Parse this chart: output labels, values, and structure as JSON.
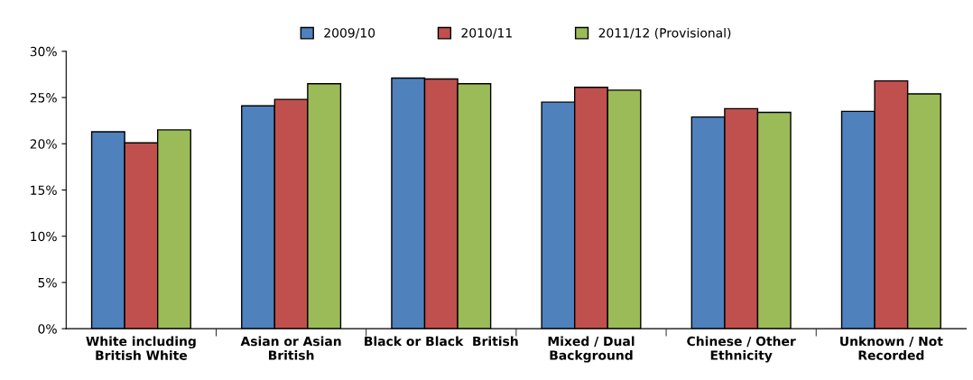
{
  "chart_data": {
    "type": "bar",
    "categories": [
      "White including\nBritish White",
      "Asian or Asian\nBritish",
      "Black or Black  British",
      "Mixed / Dual\nBackground",
      "Chinese / Other\nEthnicity",
      "Unknown / Not\nRecorded"
    ],
    "series": [
      {
        "name": "2009/10",
        "color": "#4f81bd",
        "values": [
          21.3,
          24.1,
          27.1,
          24.5,
          22.9,
          23.5
        ]
      },
      {
        "name": "2010/11",
        "color": "#c0504d",
        "values": [
          20.1,
          24.8,
          27.0,
          26.1,
          23.8,
          26.8
        ]
      },
      {
        "name": "2011/12 (Provisional)",
        "color": "#9bbb59",
        "values": [
          21.5,
          26.5,
          26.5,
          25.8,
          23.4,
          25.4
        ]
      }
    ],
    "ylim": [
      0,
      30
    ],
    "yticks": [
      {
        "value": 0,
        "label": "0%"
      },
      {
        "value": 5,
        "label": "5%"
      },
      {
        "value": 10,
        "label": "10%"
      },
      {
        "value": 15,
        "label": "15%"
      },
      {
        "value": 20,
        "label": "20%"
      },
      {
        "value": 25,
        "label": "25%"
      },
      {
        "value": 30,
        "label": "30%"
      }
    ],
    "grid": false,
    "legend": "top"
  }
}
